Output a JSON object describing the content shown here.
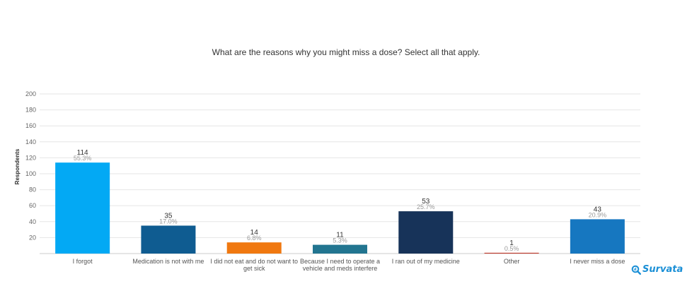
{
  "chart_data": {
    "type": "bar",
    "title": "What are the reasons why you might miss a dose? Select all that apply.",
    "xlabel": "",
    "ylabel": "Respondents",
    "ylim": [
      0,
      200
    ],
    "yticks": [
      20,
      40,
      60,
      80,
      100,
      120,
      140,
      160,
      180,
      200
    ],
    "grid": true,
    "categories": [
      [
        "I forgot"
      ],
      [
        "Medication is not with me"
      ],
      [
        "I did not eat and do not want to",
        "get sick"
      ],
      [
        "Because I need to operate a",
        "vehicle and meds interfere"
      ],
      [
        "I ran out of my medicine"
      ],
      [
        "Other"
      ],
      [
        "I never miss a dose"
      ]
    ],
    "values": [
      114,
      35,
      14,
      11,
      53,
      1,
      43
    ],
    "percent_labels": [
      "55.3%",
      "17.0%",
      "6.8%",
      "5.3%",
      "25.7%",
      "0.5%",
      "20.9%"
    ],
    "colors": [
      "#03a9f4",
      "#0f5c91",
      "#f07810",
      "#227590",
      "#173359",
      "#c0392b",
      "#1677c0"
    ]
  },
  "brand": {
    "name": "Survata"
  }
}
